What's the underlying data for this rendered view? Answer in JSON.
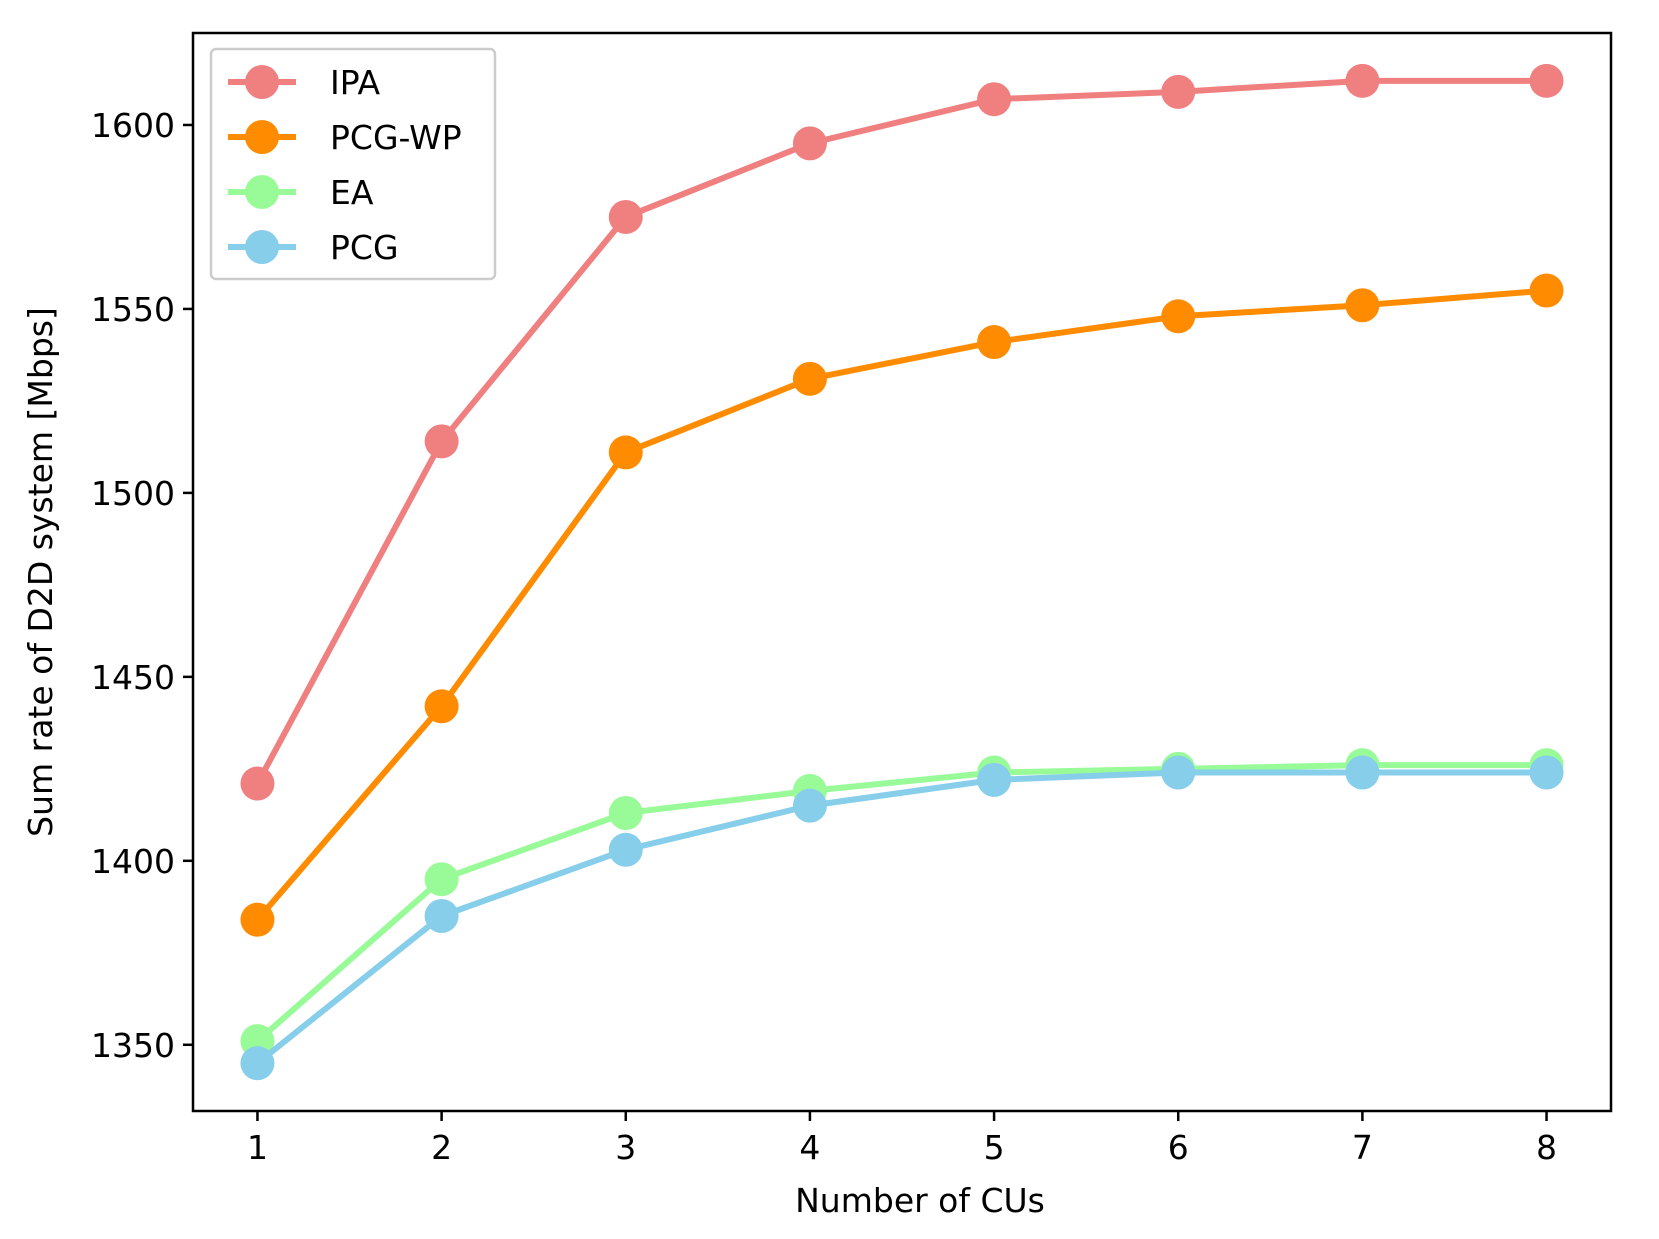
{
  "chart_data": {
    "type": "line",
    "title": "",
    "xlabel": "Number of CUs",
    "ylabel": "Sum rate of D2D system [Mbps]",
    "x": [
      1,
      2,
      3,
      4,
      5,
      6,
      7,
      8
    ],
    "xticks": [
      "1",
      "2",
      "3",
      "4",
      "5",
      "6",
      "7",
      "8"
    ],
    "yticks": [
      "1350",
      "1400",
      "1450",
      "1500",
      "1550",
      "1600"
    ],
    "ytick_values": [
      1350,
      1400,
      1450,
      1500,
      1550,
      1600
    ],
    "xlim": [
      0.65,
      8.35
    ],
    "ylim": [
      1332,
      1625
    ],
    "grid": false,
    "legend_position": "top-left",
    "series": [
      {
        "name": "IPA",
        "color": "#f08080",
        "values": [
          1421,
          1514,
          1575,
          1595,
          1607,
          1609,
          1612,
          1612
        ]
      },
      {
        "name": "PCG-WP",
        "color": "#ff8c00",
        "values": [
          1384,
          1442,
          1511,
          1531,
          1541,
          1548,
          1551,
          1555
        ]
      },
      {
        "name": "EA",
        "color": "#98fb98",
        "values": [
          1351,
          1395,
          1413,
          1419,
          1424,
          1425,
          1426,
          1426
        ]
      },
      {
        "name": "PCG",
        "color": "#87ceeb",
        "values": [
          1345,
          1385,
          1403,
          1415,
          1422,
          1424,
          1424,
          1424
        ]
      }
    ]
  }
}
